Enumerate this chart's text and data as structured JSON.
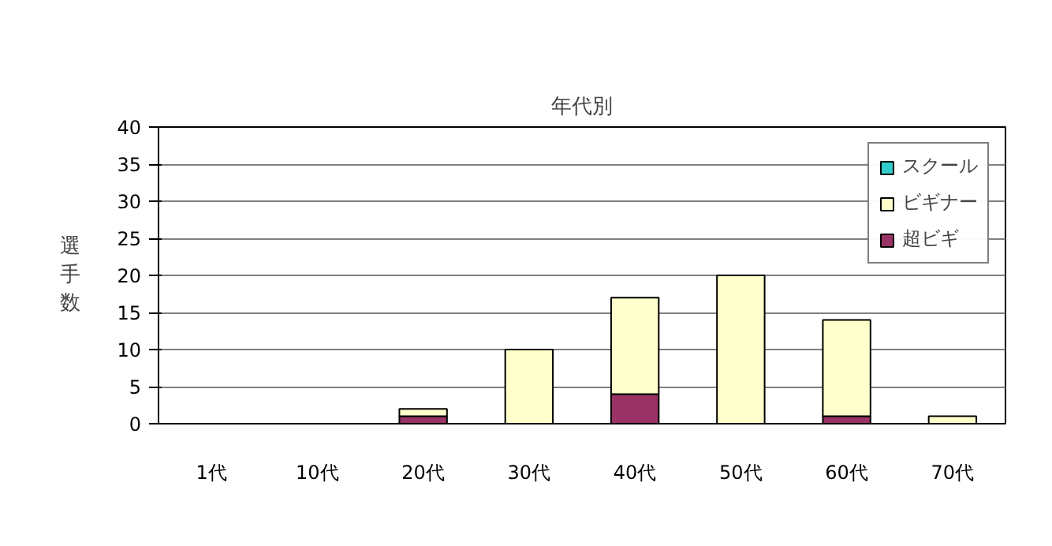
{
  "chart_data": {
    "type": "bar",
    "title": "年代別",
    "ylabel": "選手数",
    "stacked": true,
    "categories": [
      "1代",
      "10代",
      "20代",
      "30代",
      "40代",
      "50代",
      "60代",
      "70代"
    ],
    "series": [
      {
        "name": "超ビギ",
        "color": "#993366",
        "values": [
          0,
          0,
          1,
          0,
          4,
          0,
          1,
          0
        ]
      },
      {
        "name": "ビギナー",
        "color": "#ffffcc",
        "values": [
          0,
          0,
          1,
          10,
          13,
          20,
          13,
          1
        ]
      },
      {
        "name": "スクール",
        "color": "#33cccc",
        "values": [
          0,
          0,
          0,
          0,
          0,
          0,
          0,
          0
        ]
      }
    ],
    "ylim": [
      0,
      40
    ],
    "yticks": [
      0,
      5,
      10,
      15,
      20,
      25,
      30,
      35,
      40
    ],
    "grid": "y",
    "legend": "top right"
  }
}
